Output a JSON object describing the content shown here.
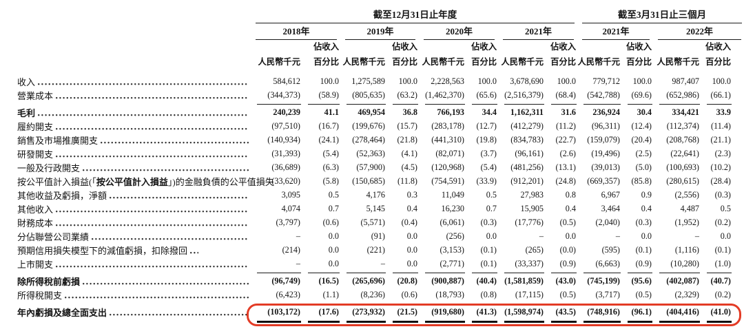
{
  "colors": {
    "text": "#141414",
    "rule_line": "#1a1a1a",
    "highlight_red": "#e33b25",
    "background": "#ffffff"
  },
  "table": {
    "group_headers": [
      {
        "label": "截至12月31日止年度",
        "span_years": 4
      },
      {
        "label": "截至3月31日止三個月",
        "span_years": 2
      }
    ],
    "years": [
      "2018年",
      "2019年",
      "2020年",
      "2021年",
      "2021年",
      "2022年"
    ],
    "col_headers": {
      "pct_top": "佔收入",
      "rmb": "人民幣千元",
      "pct_bottom": "百分比"
    },
    "rows": [
      {
        "label": "收入",
        "values": [
          "584,612",
          "100.0",
          "1,275,589",
          "100.0",
          "2,228,563",
          "100.0",
          "3,678,690",
          "100.0",
          "779,712",
          "100.0",
          "987,407",
          "100.0"
        ]
      },
      {
        "label": "營業成本",
        "rule_after": true,
        "values": [
          "(344,373)",
          "(58.9)",
          "(805,635)",
          "(63.2)",
          "(1,462,370)",
          "(65.6)",
          "(2,516,379)",
          "(68.4)",
          "(542,788)",
          "(69.6)",
          "(652,986)",
          "(66.1)"
        ]
      },
      {
        "label": "毛利",
        "bold": true,
        "values": [
          "240,239",
          "41.1",
          "469,954",
          "36.8",
          "766,193",
          "34.4",
          "1,162,311",
          "31.6",
          "236,924",
          "30.4",
          "334,421",
          "33.9"
        ]
      },
      {
        "label": "履約開支",
        "values": [
          "(97,510)",
          "(16.7)",
          "(199,676)",
          "(15.7)",
          "(283,178)",
          "(12.7)",
          "(412,279)",
          "(11.2)",
          "(96,311)",
          "(12.4)",
          "(112,374)",
          "(11.4)"
        ]
      },
      {
        "label": "銷售及市場推廣開支",
        "values": [
          "(140,934)",
          "(24.1)",
          "(278,464)",
          "(21.8)",
          "(441,310)",
          "(19.8)",
          "(834,783)",
          "(22.7)",
          "(159,079)",
          "(20.4)",
          "(208,768)",
          "(21.1)"
        ]
      },
      {
        "label": "研發開支",
        "values": [
          "(31,393)",
          "(5.4)",
          "(52,363)",
          "(4.1)",
          "(82,071)",
          "(3.7)",
          "(96,161)",
          "(2.6)",
          "(19,496)",
          "(2.5)",
          "(22,641)",
          "(2.3)"
        ]
      },
      {
        "label": "一般及行政開支",
        "values": [
          "(36,689)",
          "(6.3)",
          "(57,900)",
          "(4.5)",
          "(120,968)",
          "(5.4)",
          "(481,256)",
          "(13.1)",
          "(39,013)",
          "(5.0)",
          "(100,693)",
          "(10.2)"
        ]
      },
      {
        "label": "按公平值計入損益(「",
        "label_strong": "按公平值計入損益",
        "label_post": "」)的金融負債的公平值損失",
        "values": [
          "(33,620)",
          "(5.8)",
          "(150,685)",
          "(11.8)",
          "(754,591)",
          "(33.9)",
          "(912,201)",
          "(24.8)",
          "(669,357)",
          "(85.8)",
          "(280,615)",
          "(28.4)"
        ]
      },
      {
        "label": "其他收益及虧損，淨額",
        "values": [
          "3,095",
          "0.5",
          "4,176",
          "0.3",
          "11,049",
          "0.5",
          "27,983",
          "0.8",
          "6,967",
          "0.9",
          "(2,556)",
          "(0.3)"
        ]
      },
      {
        "label": "其他收入",
        "values": [
          "4,074",
          "0.7",
          "5,145",
          "0.4",
          "16,230",
          "0.7",
          "15,905",
          "0.4",
          "3,464",
          "0.4",
          "4,487",
          "0.5"
        ]
      },
      {
        "label": "財務成本",
        "values": [
          "(3,797)",
          "(0.6)",
          "(5,571)",
          "(0.4)",
          "(6,061)",
          "(0.3)",
          "(17,776)",
          "(0.5)",
          "(2,040)",
          "(0.3)",
          "(1,952)",
          "(0.2)"
        ]
      },
      {
        "label": "分佔聯營公司業績",
        "values": [
          "–",
          "0.0",
          "(91)",
          "0.0",
          "(256)",
          "0.0",
          "–",
          "0.0",
          "–",
          "0.0",
          "–",
          "0.0"
        ]
      },
      {
        "label": "預期信用損失模型下的減值虧損，扣除撥回",
        "leader": "short",
        "values": [
          "(214)",
          "0.0",
          "(221)",
          "0.0",
          "(3,153)",
          "(0.1)",
          "(265)",
          "(0.0)",
          "(595)",
          "(0.1)",
          "(1,116)",
          "(0.1)"
        ]
      },
      {
        "label": "上市開支",
        "rule_after": true,
        "values": [
          "–",
          "0.0",
          "–",
          "0.0",
          "(2,771)",
          "(0.1)",
          "(33,337)",
          "(0.9)",
          "(6,663)",
          "(0.9)",
          "(10,280)",
          "(1.0)"
        ]
      },
      {
        "label": "除所得稅前虧損",
        "bold": true,
        "values": [
          "(96,749)",
          "(16.5)",
          "(265,696)",
          "(20.8)",
          "(900,887)",
          "(40.4)",
          "(1,581,859)",
          "(43.0)",
          "(745,199)",
          "(95.6)",
          "(402,087)",
          "(40.7)"
        ]
      },
      {
        "label": "所得稅開支",
        "rule_after": true,
        "values": [
          "(6,423)",
          "(1.1)",
          "(8,236)",
          "(0.6)",
          "(18,793)",
          "(0.8)",
          "(17,115)",
          "(0.5)",
          "(3,717)",
          "(0.5)",
          "(2,329)",
          "(0.2)"
        ]
      },
      {
        "label": "年內虧損及總全面支出",
        "bold": true,
        "double_after": true,
        "values": [
          "(103,172)",
          "(17.6)",
          "(273,932)",
          "(21.5)",
          "(919,680)",
          "(41.3)",
          "(1,598,974)",
          "(43.5)",
          "(748,916)",
          "(96.1)",
          "(404,416)",
          "(41.0)"
        ]
      }
    ]
  },
  "annotation": {
    "shape": "red-rounded-box",
    "color": "#e33b25",
    "highlighted_row": "年內虧損及總全面支出"
  }
}
